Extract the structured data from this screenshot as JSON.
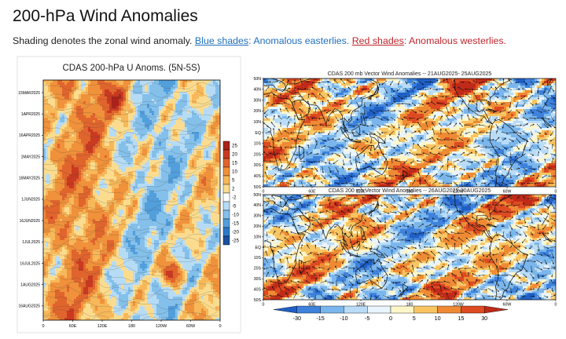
{
  "page": {
    "title": "200-hPa Wind Anomalies",
    "description": {
      "intro": "Shading denotes the zonal wind anomaly.",
      "blue_label": "Blue shades",
      "blue_text": ": Anomalous easterlies.",
      "red_label": "Red shades",
      "red_text": ": Anomalous westerlies."
    },
    "colors": {
      "blue_text": "#1f6fbf",
      "red_text": "#c0262d"
    }
  },
  "chart_data": [
    {
      "type": "heatmap",
      "title": "CDAS 200-hPa U Anoms. (5N-5S)",
      "x_tick_labels": [
        "0",
        "60E",
        "120E",
        "180",
        "120W",
        "60W",
        "0"
      ],
      "y_tick_labels": [
        "15MAR2025",
        "1APR2025",
        "16APR2025",
        "1MAY2025",
        "16MAY2025",
        "1JUN2025",
        "16JUN2025",
        "1JUL2025",
        "16JUL2025",
        "1AUG2025",
        "16AUG2025"
      ],
      "colorbar": {
        "labels": [
          "25",
          "20",
          "15",
          "10",
          "5",
          "2",
          "-2",
          "-5",
          "-10",
          "-15",
          "-20",
          "-25"
        ],
        "colors": [
          "#a8231a",
          "#c93a21",
          "#e0652d",
          "#f0913b",
          "#f7b85a",
          "#fbdc8f",
          "#ffffff",
          "#b6dcf5",
          "#84c0ea",
          "#529fdc",
          "#2d79c7",
          "#1a4f9e"
        ]
      }
    },
    {
      "type": "heatmap",
      "title": "CDAS 200 mb Vector Wind Anomalies -- 21AUG2025- 25AUG2025",
      "x_tick_labels": [
        "0",
        "60E",
        "120E",
        "180",
        "120W",
        "60W",
        "0"
      ],
      "y_tick_labels": [
        "50N",
        "40N",
        "30N",
        "20N",
        "10N",
        "EQ",
        "10S",
        "20S",
        "30S",
        "40S",
        "50S"
      ]
    },
    {
      "type": "heatmap",
      "title": "CDAS 200 mb Vector Wind Anomalies -- 26AUG2025-30AUG2025",
      "x_tick_labels": [
        "0",
        "60E",
        "120E",
        "180",
        "120W",
        "60W",
        "0"
      ],
      "y_tick_labels": [
        "50N",
        "40N",
        "30N",
        "20N",
        "10N",
        "EQ",
        "10S",
        "20S",
        "30S",
        "40S",
        "50S"
      ],
      "colorbar": {
        "labels": [
          "-30",
          "-15",
          "-10",
          "-5",
          "0",
          "5",
          "10",
          "15",
          "30"
        ],
        "colors": [
          "#1f5fc5",
          "#3f82dc",
          "#7ab6ec",
          "#b9dcf7",
          "#e9f4fd",
          "#fdf6c8",
          "#f8c562",
          "#ef8a34",
          "#dd4b22",
          "#c02a18"
        ]
      }
    }
  ]
}
